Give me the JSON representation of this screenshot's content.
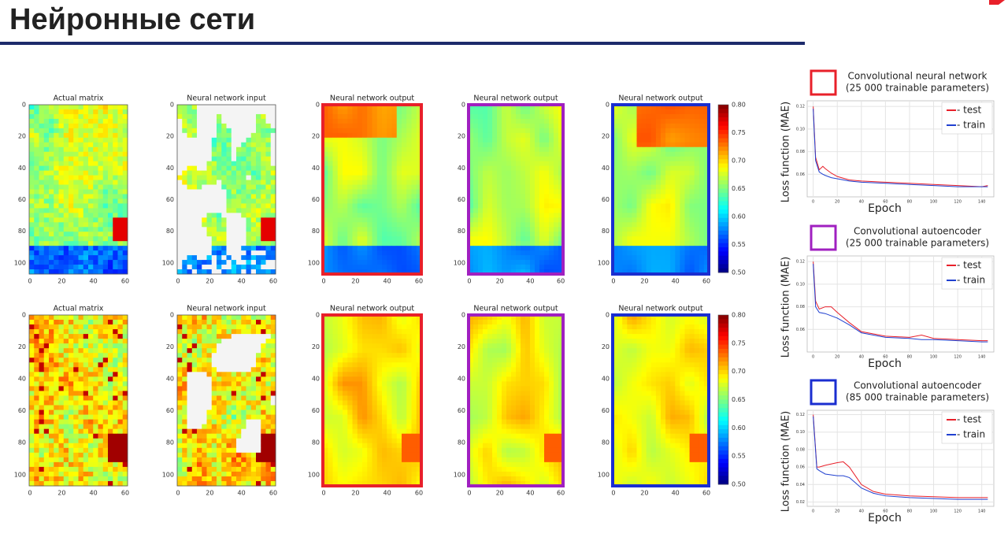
{
  "header": {
    "title": "Нейронные сети"
  },
  "heatmap_axes": {
    "xticks": [
      "0",
      "20",
      "40",
      "60"
    ],
    "yticks": [
      "0",
      "20",
      "40",
      "60",
      "80",
      "100"
    ]
  },
  "rows": [
    {
      "panels": [
        "Actual matrix",
        "Neural network input",
        "Neural network output",
        "Neural network output",
        "Neural network output"
      ],
      "colorbar": [
        "0.80",
        "0.75",
        "0.70",
        "0.65",
        "0.60",
        "0.55",
        "0.50"
      ]
    },
    {
      "panels": [
        "Actual matrix",
        "Neural network input",
        "Neural network output",
        "Neural network output",
        "Neural network output"
      ],
      "colorbar": [
        "0.80",
        "0.75",
        "0.70",
        "0.65",
        "0.60",
        "0.55",
        "0.50"
      ]
    }
  ],
  "loss_charts": [
    {
      "title_lines": [
        "Convolutional neural network",
        "(25 000 trainable parameters)"
      ],
      "frame_color": "#e8202a",
      "ylabel": "Loss function (MAE)",
      "xlabel": "Epoch",
      "ylim": [
        0.04,
        0.125
      ],
      "yticks": [
        {
          "value": 0.06,
          "label": "0.06"
        },
        {
          "value": 0.08,
          "label": "0.08"
        },
        {
          "value": 0.1,
          "label": "0.10"
        },
        {
          "value": 0.12,
          "label": "0.12"
        }
      ],
      "xlim": [
        -5,
        150
      ],
      "xticks": [
        0,
        20,
        40,
        60,
        80,
        100,
        120,
        140
      ],
      "series": [
        {
          "name": "- test",
          "color": "#e8202a",
          "x": [
            0,
            2,
            5,
            8,
            10,
            15,
            20,
            30,
            40,
            60,
            80,
            100,
            120,
            140,
            145
          ],
          "values": [
            0.12,
            0.075,
            0.064,
            0.067,
            0.065,
            0.061,
            0.058,
            0.055,
            0.054,
            0.053,
            0.052,
            0.051,
            0.05,
            0.049,
            0.05
          ]
        },
        {
          "name": "- train",
          "color": "#2040d0",
          "x": [
            0,
            2,
            5,
            8,
            10,
            15,
            20,
            30,
            40,
            60,
            80,
            100,
            120,
            140,
            145
          ],
          "values": [
            0.118,
            0.072,
            0.062,
            0.06,
            0.059,
            0.057,
            0.056,
            0.054,
            0.053,
            0.052,
            0.051,
            0.05,
            0.049,
            0.049,
            0.049
          ]
        }
      ]
    },
    {
      "title_lines": [
        "Convolutional autoencoder",
        "(25 000 trainable parameters)"
      ],
      "frame_color": "#a020c0",
      "ylabel": "Loss function (MAE)",
      "xlabel": "Epoch",
      "ylim": [
        0.04,
        0.125
      ],
      "yticks": [
        {
          "value": 0.06,
          "label": "0.06"
        },
        {
          "value": 0.08,
          "label": "0.08"
        },
        {
          "value": 0.1,
          "label": "0.10"
        },
        {
          "value": 0.12,
          "label": "0.12"
        }
      ],
      "xlim": [
        -5,
        150
      ],
      "xticks": [
        0,
        20,
        40,
        60,
        80,
        100,
        120,
        140
      ],
      "series": [
        {
          "name": "- test",
          "color": "#e8202a",
          "x": [
            0,
            2,
            5,
            10,
            15,
            20,
            30,
            40,
            60,
            80,
            90,
            100,
            120,
            140,
            145
          ],
          "values": [
            0.12,
            0.085,
            0.078,
            0.08,
            0.08,
            0.075,
            0.066,
            0.058,
            0.054,
            0.053,
            0.055,
            0.052,
            0.051,
            0.05,
            0.05
          ]
        },
        {
          "name": "- train",
          "color": "#2040d0",
          "x": [
            0,
            2,
            5,
            10,
            15,
            20,
            30,
            40,
            60,
            80,
            90,
            100,
            120,
            140,
            145
          ],
          "values": [
            0.118,
            0.08,
            0.075,
            0.074,
            0.072,
            0.07,
            0.064,
            0.057,
            0.053,
            0.052,
            0.051,
            0.051,
            0.05,
            0.049,
            0.049
          ]
        }
      ]
    },
    {
      "title_lines": [
        "Convolutional autoencoder",
        "(85 000 trainable parameters)"
      ],
      "frame_color": "#1a2ed0",
      "ylabel": "Loss function (MAE)",
      "xlabel": "Epoch",
      "ylim": [
        0.015,
        0.125
      ],
      "yticks": [
        {
          "value": 0.02,
          "label": "0.02"
        },
        {
          "value": 0.04,
          "label": "0.04"
        },
        {
          "value": 0.06,
          "label": "0.06"
        },
        {
          "value": 0.08,
          "label": "0.08"
        },
        {
          "value": 0.1,
          "label": "0.10"
        },
        {
          "value": 0.12,
          "label": "0.12"
        }
      ],
      "xlim": [
        -5,
        150
      ],
      "xticks": [
        0,
        20,
        40,
        60,
        80,
        100,
        120,
        140
      ],
      "series": [
        {
          "name": "- test",
          "color": "#e8202a",
          "x": [
            0,
            3,
            5,
            10,
            20,
            25,
            30,
            35,
            40,
            50,
            60,
            80,
            100,
            120,
            140,
            145
          ],
          "values": [
            0.12,
            0.06,
            0.06,
            0.062,
            0.065,
            0.066,
            0.06,
            0.05,
            0.04,
            0.032,
            0.029,
            0.027,
            0.026,
            0.025,
            0.025,
            0.025
          ]
        },
        {
          "name": "- train",
          "color": "#2040d0",
          "x": [
            0,
            3,
            5,
            10,
            20,
            25,
            30,
            35,
            40,
            50,
            60,
            80,
            100,
            120,
            140,
            145
          ],
          "values": [
            0.118,
            0.058,
            0.056,
            0.052,
            0.05,
            0.05,
            0.048,
            0.042,
            0.036,
            0.03,
            0.027,
            0.025,
            0.024,
            0.023,
            0.023,
            0.023
          ]
        }
      ]
    }
  ]
}
